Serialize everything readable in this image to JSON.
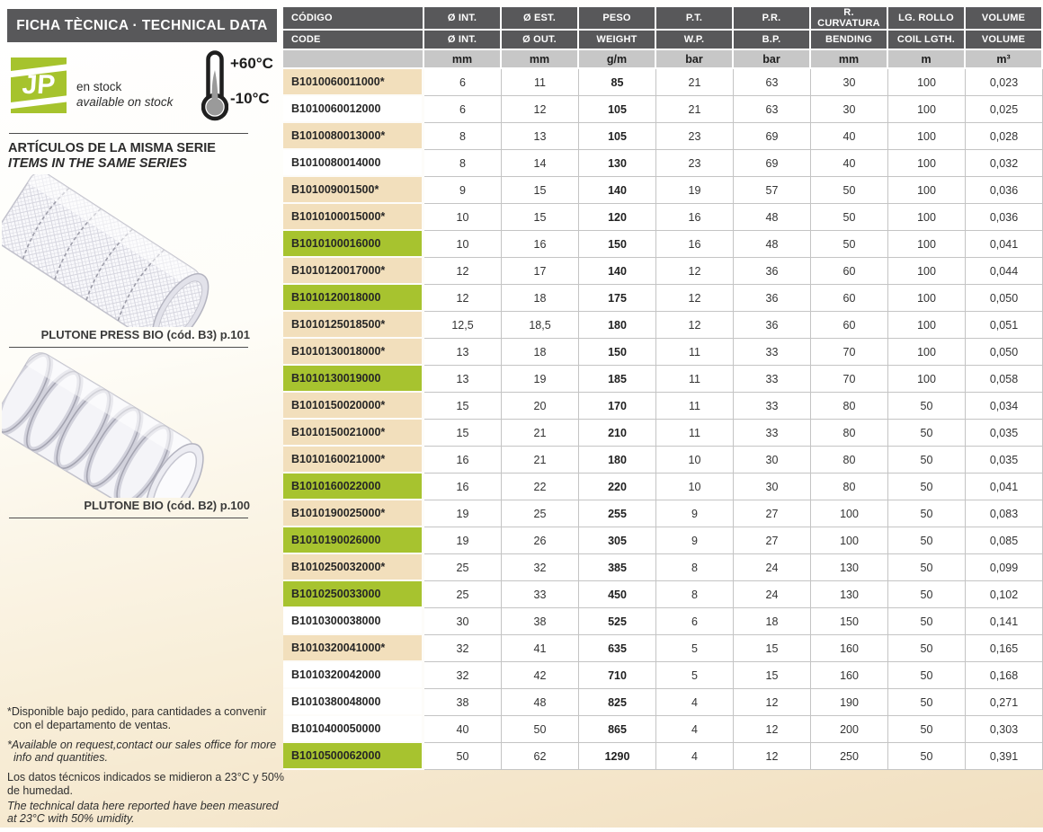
{
  "sidebar": {
    "title": "FICHA TÈCNICA · TECHNICAL DATA",
    "logo_text": "JP",
    "stock_line1": "en stock",
    "stock_line2": "available on stock",
    "temp_max": "+60°C",
    "temp_min": "-10°C",
    "series_heading_es": "ARTÍCULOS DE LA MISMA SERIE",
    "series_heading_en": "ITEMS IN THE SAME SERIES",
    "products": [
      {
        "caption": "PLUTONE PRESS BIO (cód. B3) p.101"
      },
      {
        "caption": "PLUTONE BIO (cód. B2) p.100"
      }
    ],
    "footnotes": {
      "es1": "*Disponible bajo pedido, para cantidades a convenir con el departamento de ventas.",
      "en1": "*Available on request,contact our sales office for more info and quantities.",
      "es2": "Los datos técnicos indicados se midieron a 23°C y 50% de humedad.",
      "en2": "The technical data here reported have been measured at 23°C with 50% umidity."
    }
  },
  "table": {
    "header_row1": [
      "CÓDIGO",
      "Ø INT.",
      "Ø EST.",
      "PESO",
      "P.T.",
      "P.R.",
      "R. CURVATURA",
      "LG. ROLLO",
      "VOLUME"
    ],
    "header_row2": [
      "CODE",
      "Ø INT.",
      "Ø OUT.",
      "WEIGHT",
      "W.P.",
      "B.P.",
      "BENDING",
      "COIL LGTH.",
      "VOLUME"
    ],
    "units": [
      "",
      "mm",
      "mm",
      "g/m",
      "bar",
      "bar",
      "mm",
      "m",
      "m³"
    ],
    "colors": {
      "header_bg": "#58585a",
      "units_bg": "#c7c7c7",
      "tan_highlight": "#f2dfbc",
      "green_highlight": "#a7c32f",
      "logo_green": "#a6c32d",
      "page_beige": "#f1dfc0"
    },
    "rows": [
      {
        "code": "B1010060011000*",
        "highlight": "tan",
        "values": [
          "6",
          "11",
          "85",
          "21",
          "63",
          "30",
          "100",
          "0,023"
        ]
      },
      {
        "code": "B1010060012000",
        "highlight": "white",
        "values": [
          "6",
          "12",
          "105",
          "21",
          "63",
          "30",
          "100",
          "0,025"
        ]
      },
      {
        "code": "B1010080013000*",
        "highlight": "tan",
        "values": [
          "8",
          "13",
          "105",
          "23",
          "69",
          "40",
          "100",
          "0,028"
        ]
      },
      {
        "code": "B1010080014000",
        "highlight": "white",
        "values": [
          "8",
          "14",
          "130",
          "23",
          "69",
          "40",
          "100",
          "0,032"
        ]
      },
      {
        "code": "B101009001500*",
        "highlight": "tan",
        "values": [
          "9",
          "15",
          "140",
          "19",
          "57",
          "50",
          "100",
          "0,036"
        ]
      },
      {
        "code": "B1010100015000*",
        "highlight": "tan",
        "values": [
          "10",
          "15",
          "120",
          "16",
          "48",
          "50",
          "100",
          "0,036"
        ]
      },
      {
        "code": "B1010100016000",
        "highlight": "green",
        "values": [
          "10",
          "16",
          "150",
          "16",
          "48",
          "50",
          "100",
          "0,041"
        ]
      },
      {
        "code": "B1010120017000*",
        "highlight": "tan",
        "values": [
          "12",
          "17",
          "140",
          "12",
          "36",
          "60",
          "100",
          "0,044"
        ]
      },
      {
        "code": "B1010120018000",
        "highlight": "green",
        "values": [
          "12",
          "18",
          "175",
          "12",
          "36",
          "60",
          "100",
          "0,050"
        ]
      },
      {
        "code": "B1010125018500*",
        "highlight": "tan",
        "values": [
          "12,5",
          "18,5",
          "180",
          "12",
          "36",
          "60",
          "100",
          "0,051"
        ]
      },
      {
        "code": "B1010130018000*",
        "highlight": "tan",
        "values": [
          "13",
          "18",
          "150",
          "11",
          "33",
          "70",
          "100",
          "0,050"
        ]
      },
      {
        "code": "B1010130019000",
        "highlight": "green",
        "values": [
          "13",
          "19",
          "185",
          "11",
          "33",
          "70",
          "100",
          "0,058"
        ]
      },
      {
        "code": "B1010150020000*",
        "highlight": "tan",
        "values": [
          "15",
          "20",
          "170",
          "11",
          "33",
          "80",
          "50",
          "0,034"
        ]
      },
      {
        "code": "B1010150021000*",
        "highlight": "tan",
        "values": [
          "15",
          "21",
          "210",
          "11",
          "33",
          "80",
          "50",
          "0,035"
        ]
      },
      {
        "code": "B1010160021000*",
        "highlight": "tan",
        "values": [
          "16",
          "21",
          "180",
          "10",
          "30",
          "80",
          "50",
          "0,035"
        ]
      },
      {
        "code": "B1010160022000",
        "highlight": "green",
        "values": [
          "16",
          "22",
          "220",
          "10",
          "30",
          "80",
          "50",
          "0,041"
        ]
      },
      {
        "code": "B1010190025000*",
        "highlight": "tan",
        "values": [
          "19",
          "25",
          "255",
          "9",
          "27",
          "100",
          "50",
          "0,083"
        ]
      },
      {
        "code": "B1010190026000",
        "highlight": "green",
        "values": [
          "19",
          "26",
          "305",
          "9",
          "27",
          "100",
          "50",
          "0,085"
        ]
      },
      {
        "code": "B1010250032000*",
        "highlight": "tan",
        "values": [
          "25",
          "32",
          "385",
          "8",
          "24",
          "130",
          "50",
          "0,099"
        ]
      },
      {
        "code": "B1010250033000",
        "highlight": "green",
        "values": [
          "25",
          "33",
          "450",
          "8",
          "24",
          "130",
          "50",
          "0,102"
        ]
      },
      {
        "code": "B1010300038000",
        "highlight": "white",
        "values": [
          "30",
          "38",
          "525",
          "6",
          "18",
          "150",
          "50",
          "0,141"
        ]
      },
      {
        "code": "B1010320041000*",
        "highlight": "tan",
        "values": [
          "32",
          "41",
          "635",
          "5",
          "15",
          "160",
          "50",
          "0,165"
        ]
      },
      {
        "code": "B1010320042000",
        "highlight": "white",
        "values": [
          "32",
          "42",
          "710",
          "5",
          "15",
          "160",
          "50",
          "0,168"
        ]
      },
      {
        "code": "B1010380048000",
        "highlight": "white",
        "values": [
          "38",
          "48",
          "825",
          "4",
          "12",
          "190",
          "50",
          "0,271"
        ]
      },
      {
        "code": "B1010400050000",
        "highlight": "white",
        "values": [
          "40",
          "50",
          "865",
          "4",
          "12",
          "200",
          "50",
          "0,303"
        ]
      },
      {
        "code": "B1010500062000",
        "highlight": "green",
        "values": [
          "50",
          "62",
          "1290",
          "4",
          "12",
          "250",
          "50",
          "0,391"
        ]
      }
    ]
  }
}
